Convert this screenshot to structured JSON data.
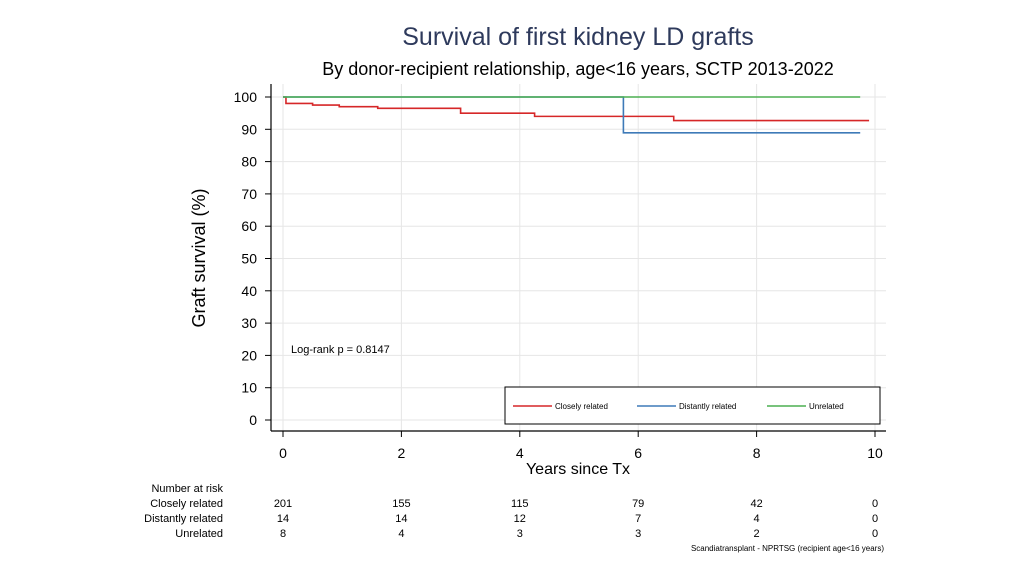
{
  "chart_data": {
    "type": "line",
    "subtype": "kaplan-meier step",
    "title": "Survival of first kidney LD grafts",
    "subtitle": "By donor-recipient relationship, age<16 years, SCTP 2013-2022",
    "xlabel": "Years since Tx",
    "ylabel": "Graft survival (%)",
    "xlim": [
      0,
      10
    ],
    "ylim": [
      0,
      100
    ],
    "xticks": [
      0,
      2,
      4,
      6,
      8,
      10
    ],
    "yticks": [
      0,
      10,
      20,
      30,
      40,
      50,
      60,
      70,
      80,
      90,
      100
    ],
    "grid": true,
    "legend_position": "bottom-right inside plot",
    "annotation": "Log-rank p = 0.8147",
    "series": [
      {
        "name": "Closely related",
        "color": "#d62728",
        "x": [
          0,
          0.05,
          0.5,
          0.95,
          1.6,
          3.0,
          4.25,
          6.6,
          9.9
        ],
        "y": [
          100,
          98.0,
          97.5,
          97.0,
          96.5,
          95.0,
          94.0,
          92.7,
          92.7
        ]
      },
      {
        "name": "Distantly related",
        "color": "#3e7ab8",
        "x": [
          0,
          5.75,
          9.75
        ],
        "y": [
          100,
          88.9,
          88.9
        ]
      },
      {
        "name": "Unrelated",
        "color": "#4caf50",
        "x": [
          0,
          9.75
        ],
        "y": [
          100,
          100
        ]
      }
    ],
    "risk_table": {
      "header": "Number at risk",
      "times": [
        0,
        2,
        4,
        6,
        8,
        10
      ],
      "rows": [
        {
          "label": "Closely related",
          "counts": [
            "201",
            "155",
            "115",
            "79",
            "42",
            "0"
          ]
        },
        {
          "label": "Distantly related",
          "counts": [
            "14",
            "14",
            "12",
            "7",
            "4",
            "0"
          ]
        },
        {
          "label": "Unrelated",
          "counts": [
            "8",
            "4",
            "3",
            "3",
            "2",
            "0"
          ]
        }
      ]
    },
    "footnote": "Scandiatransplant - NPRTSG (recipient age<16 years)"
  }
}
